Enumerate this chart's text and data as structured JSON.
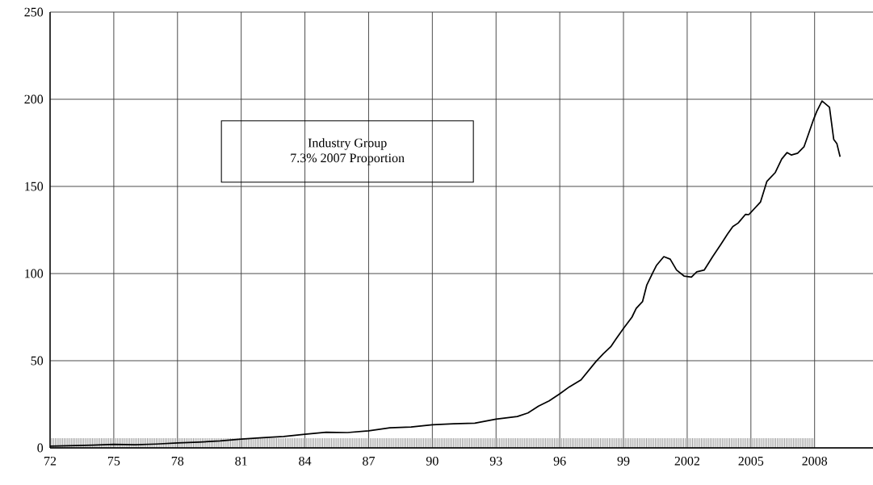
{
  "chart_data": {
    "type": "line",
    "annotations": [
      "Industry Group",
      "7.3% 2007 Proportion"
    ],
    "x": [
      1972,
      1973,
      1974,
      1975,
      1976,
      1977,
      1978,
      1979,
      1980,
      1981,
      1982,
      1983,
      1984,
      1985,
      1986,
      1987,
      1988,
      1989,
      1990,
      1991,
      1992,
      1993,
      1994,
      1994.5,
      1995,
      1995.5,
      1996,
      1996.45,
      1997.0,
      1997.7,
      1998.05,
      1998.4,
      1998.65,
      1999.0,
      1999.4,
      1999.6,
      1999.9,
      2000.1,
      2000.4,
      2000.55,
      2000.9,
      2001.2,
      2001.5,
      2001.85,
      2002.2,
      2002.45,
      2002.8,
      2003.2,
      2003.6,
      2003.9,
      2004.15,
      2004.4,
      2004.75,
      2004.9,
      2005.45,
      2005.75,
      2006.15,
      2006.45,
      2006.7,
      2006.9,
      2007.2,
      2007.5,
      2007.7,
      2007.95,
      2008.1,
      2008.35,
      2008.7,
      2008.9,
      2009.05,
      2009.2
    ],
    "values": [
      1,
      1.3,
      1.6,
      2,
      1.8,
      2.2,
      2.8,
      3.3,
      4,
      5,
      5.8,
      6.5,
      7.8,
      9,
      8.8,
      9.8,
      11.5,
      12,
      13.3,
      13.8,
      14.2,
      16.5,
      18,
      20,
      24,
      27,
      31,
      35,
      39,
      49.5,
      54,
      58,
      62.5,
      68.5,
      75,
      80,
      84,
      93.5,
      101,
      104.6,
      109.7,
      108.3,
      102,
      98.6,
      98,
      101,
      102,
      109.7,
      117,
      122.7,
      127,
      129,
      134,
      133.8,
      141,
      152.8,
      158,
      165.7,
      169.4,
      168,
      169,
      172.7,
      179.6,
      188.4,
      193,
      199,
      195.4,
      177,
      174.5,
      167
    ],
    "color": "#000000",
    "xlim": [
      1972,
      2010.75
    ],
    "ylim": [
      0,
      250
    ],
    "xticks": [
      {
        "value": 1972,
        "label": "72"
      },
      {
        "value": 1975,
        "label": "75"
      },
      {
        "value": 1978,
        "label": "78"
      },
      {
        "value": 1981,
        "label": "81"
      },
      {
        "value": 1984,
        "label": "84"
      },
      {
        "value": 1987,
        "label": "87"
      },
      {
        "value": 1990,
        "label": "90"
      },
      {
        "value": 1993,
        "label": "93"
      },
      {
        "value": 1996,
        "label": "96"
      },
      {
        "value": 1999,
        "label": "99"
      },
      {
        "value": 2002,
        "label": "2002"
      },
      {
        "value": 2005,
        "label": "2005"
      },
      {
        "value": 2008,
        "label": "2008"
      }
    ],
    "yticks": [
      0,
      50,
      100,
      150,
      200,
      250
    ],
    "grid": true,
    "marker": "none",
    "line_style": "solid"
  }
}
